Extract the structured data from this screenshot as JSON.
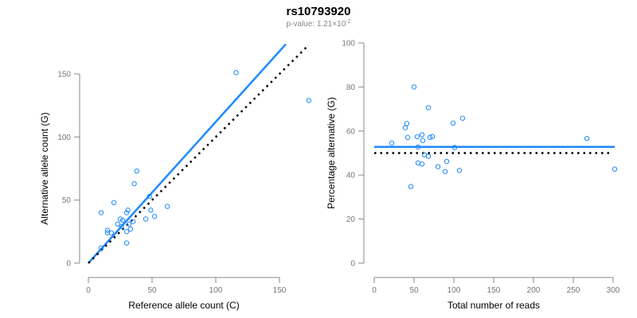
{
  "title": "rs10793920",
  "subtitle": {
    "prefix": "p-value: 1.21×10",
    "exponent": "-2"
  },
  "colors": {
    "points": "#1e88ff",
    "fit": "#1e88ff",
    "reference": "#000000",
    "axis": "#888888"
  },
  "chart_data": [
    {
      "type": "scatter",
      "xlabel": "Reference allele count (C)",
      "ylabel": "Alternative allele count (G)",
      "xlim": [
        0,
        150
      ],
      "ylim": [
        0,
        150
      ],
      "xticks": [
        0,
        50,
        100,
        150
      ],
      "yticks": [
        0,
        50,
        100,
        150
      ],
      "grid": false,
      "x": [
        116,
        173,
        38,
        36,
        20,
        48,
        62,
        10,
        30,
        31,
        49,
        52,
        45,
        25,
        27,
        23,
        35,
        32,
        26,
        33,
        15,
        15,
        18,
        30,
        30,
        10
      ],
      "y": [
        151,
        129,
        73,
        63,
        48,
        53,
        45,
        40,
        40,
        42,
        42,
        37,
        35,
        35,
        34,
        31,
        33,
        31,
        29,
        27,
        26,
        24,
        24,
        25,
        16,
        12
      ],
      "lines": [
        {
          "name": "fit",
          "style": "solid",
          "slope": 1.12,
          "intercept": 0,
          "x_range": [
            0,
            155
          ]
        },
        {
          "name": "reference",
          "style": "dotted",
          "slope": 1.0,
          "intercept": 0,
          "x_range": [
            0,
            172
          ]
        }
      ]
    },
    {
      "type": "scatter",
      "xlabel": "Total number of reads",
      "ylabel": "Percentage alternative (G)",
      "xlim": [
        0,
        300
      ],
      "ylim": [
        0,
        100
      ],
      "xticks": [
        0,
        50,
        100,
        150,
        200,
        250,
        300
      ],
      "yticks": [
        0,
        20,
        40,
        60,
        80,
        100
      ],
      "grid": false,
      "x": [
        267,
        302,
        111,
        99,
        68,
        101,
        107,
        50,
        70,
        73,
        91,
        89,
        80,
        60,
        61,
        54,
        68,
        63,
        55,
        60,
        41,
        39,
        42,
        55,
        46,
        22
      ],
      "y": [
        56.6,
        42.7,
        65.8,
        63.6,
        70.6,
        52.5,
        42.1,
        80,
        57.1,
        57.5,
        46.2,
        41.6,
        43.8,
        58.3,
        55.7,
        57.4,
        48.5,
        49.2,
        52.7,
        45,
        63.4,
        61.5,
        57.1,
        45.5,
        34.8,
        54.5
      ],
      "lines": [
        {
          "name": "fit",
          "style": "solid",
          "value": 52.8,
          "x_range": [
            0,
            302
          ]
        },
        {
          "name": "reference",
          "style": "dotted",
          "value": 50,
          "x_range": [
            0,
            300
          ]
        }
      ]
    }
  ]
}
